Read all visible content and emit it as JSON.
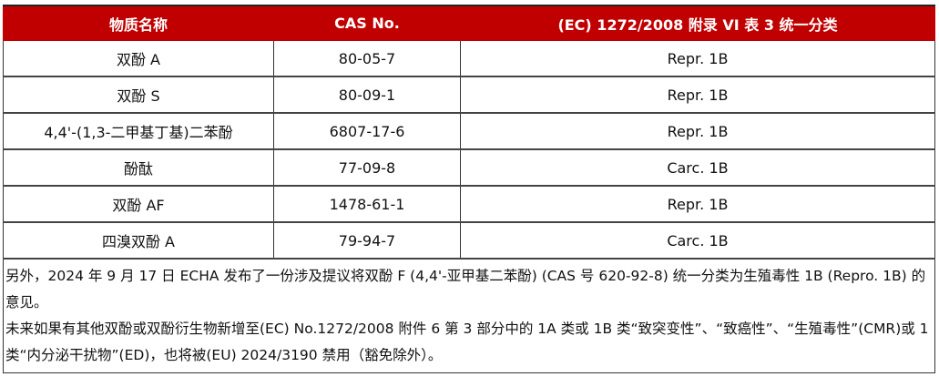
{
  "table": {
    "headers": [
      "物质名称",
      "CAS No.",
      "(EC) 1272/2008 附录 VI 表 3 统一分类"
    ],
    "rows": [
      [
        "双酚 A",
        "80-05-7",
        "Repr. 1B"
      ],
      [
        "双酚 S",
        "80-09-1",
        "Repr. 1B"
      ],
      [
        "4,4'-(1,3-二甲基丁基)二苯酚",
        "6807-17-6",
        "Repr. 1B"
      ],
      [
        "酚酞",
        "77-09-8",
        "Carc. 1B"
      ],
      [
        "双酚 AF",
        "1478-61-1",
        "Repr. 1B"
      ],
      [
        "四溴双酚 A",
        "79-94-7",
        "Carc. 1B"
      ]
    ],
    "notes": [
      "另外，2024 年 9 月 17 日 ECHA 发布了一份涉及提议将双酚 F (4,4'-亚甲基二苯酚) (CAS 号 620-92-8) 统一分类为生殖毒性 1B (Repro. 1B) 的意见。",
      "未来如果有其他双酚或双酚衍生物新增至(EC) No.1272/2008 附件 6 第 3 部分中的 1A 类或 1B 类“致突变性”、“致癌性”、“生殖毒性”(CMR)或 1 类“内分泌干扰物”(ED)，也将被(EU) 2024/3190 禁用（豁免除外）。"
    ],
    "header_color": "#C00000"
  }
}
